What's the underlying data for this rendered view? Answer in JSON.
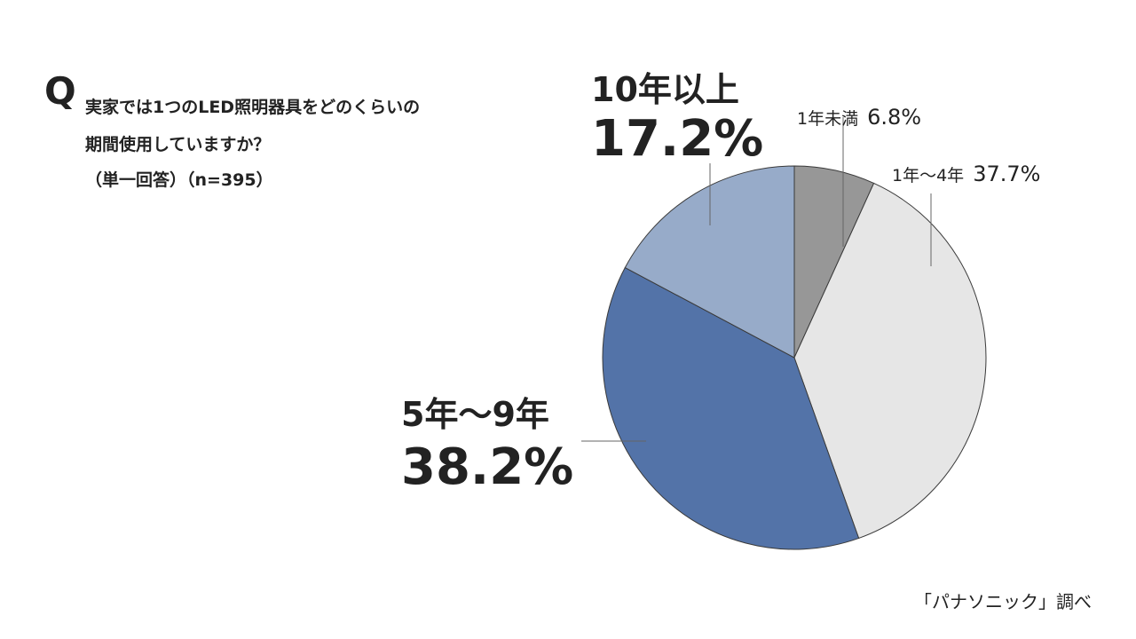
{
  "question": {
    "mark": "Q",
    "line1": "実家では1つのLED照明器具をどのくらいの",
    "line2": "期間使用していますか？",
    "line3": "（単一回答）（n=395）"
  },
  "source": "「パナソニック」調べ",
  "chart_data": {
    "type": "pie",
    "start_angle_deg": 0,
    "direction": "clockwise",
    "slices": [
      {
        "label": "1年未満",
        "value_label": "6.8%",
        "value": 6.8,
        "color": "#979797"
      },
      {
        "label": "1年～4年",
        "value_label": "37.7%",
        "value": 37.7,
        "color": "#e6e6e6"
      },
      {
        "label": "5年～9年",
        "value_label": "38.2%",
        "value": 38.2,
        "color": "#5373a8"
      },
      {
        "label": "10年以上",
        "value_label": "17.2%",
        "value": 17.2,
        "color": "#97abc9"
      }
    ]
  }
}
